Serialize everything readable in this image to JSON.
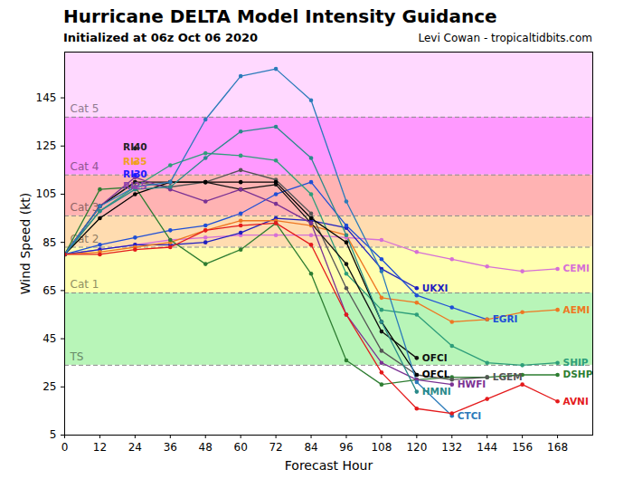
{
  "chart_data": {
    "type": "line",
    "title": "Hurricane DELTA Model Intensity Guidance",
    "subtitle": "Initialized at 06z Oct 06 2020",
    "source": "Levi Cowan - tropicaltidbits.com",
    "x_label": "Forecast Hour",
    "y_label": "Wind Speed (kt)",
    "x": [
      0,
      12,
      24,
      36,
      48,
      60,
      72,
      84,
      96,
      108,
      120,
      132,
      144,
      156,
      168
    ],
    "xlim": [
      0,
      180
    ],
    "xticks": [
      0,
      12,
      24,
      36,
      48,
      60,
      72,
      84,
      96,
      108,
      120,
      132,
      144,
      156,
      168
    ],
    "ylim": [
      5,
      164
    ],
    "yticks": [
      5,
      25,
      45,
      65,
      85,
      105,
      125,
      145
    ],
    "grid": false,
    "marker": "circle",
    "bands": [
      {
        "name": "TS",
        "low": 34,
        "high": 64,
        "color": "#b8f5b8"
      },
      {
        "name": "Cat 1",
        "low": 64,
        "high": 83,
        "color": "#ffffb0"
      },
      {
        "name": "Cat 2",
        "low": 83,
        "high": 96,
        "color": "#ffdcb0"
      },
      {
        "name": "Cat 3",
        "low": 96,
        "high": 113,
        "color": "#ffb3b3"
      },
      {
        "name": "Cat 4",
        "low": 113,
        "high": 137,
        "color": "#ff99ff"
      },
      {
        "name": "Cat 5",
        "low": 137,
        "high": 164,
        "color": "#ffd9ff"
      }
    ],
    "series": [
      {
        "name": "CEMI",
        "color": "#d66fd6",
        "values": [
          80,
          82,
          84,
          86,
          87,
          88,
          88,
          88,
          87,
          86,
          81,
          78,
          75,
          73,
          74
        ]
      },
      {
        "name": "UKXI",
        "color": "#1f1fbf",
        "values": [
          80,
          82,
          84,
          84,
          85,
          89,
          95,
          94,
          91,
          74,
          66,
          null,
          null,
          null,
          null
        ]
      },
      {
        "name": "EGRI",
        "color": "#1f4fd6",
        "values": [
          80,
          84,
          87,
          90,
          92,
          97,
          105,
          110,
          92,
          78,
          63,
          58,
          53,
          null,
          null
        ]
      },
      {
        "name": "AEMI",
        "color": "#ee7722",
        "values": [
          80,
          81,
          83,
          85,
          90,
          94,
          94,
          92,
          88,
          62,
          60,
          52,
          53,
          56,
          57
        ]
      },
      {
        "name": "SHIP",
        "color": "#2e9e7a",
        "values": [
          80,
          98,
          108,
          117,
          122,
          121,
          119,
          105,
          72,
          57,
          55,
          42,
          35,
          34,
          35
        ]
      },
      {
        "name": "DSHP",
        "color": "#2e7d32",
        "values": [
          80,
          107,
          108,
          86,
          76,
          82,
          93,
          72,
          36,
          26,
          28,
          29,
          29,
          30,
          30
        ]
      },
      {
        "name": "LGEM",
        "color": "#555555",
        "values": [
          80,
          100,
          110,
          108,
          110,
          115,
          111,
          97,
          66,
          40,
          30,
          28,
          29,
          null,
          null
        ]
      },
      {
        "name": "OFCI",
        "color": "#111111",
        "values": [
          80,
          100,
          110,
          110,
          110,
          107,
          109,
          93,
          76,
          48,
          37,
          null,
          null,
          null,
          null
        ]
      },
      {
        "name": "OFCL",
        "color": "#000000",
        "values": [
          80,
          95,
          105,
          110,
          110,
          110,
          110,
          95,
          85,
          52,
          30,
          null,
          null,
          null,
          null
        ]
      },
      {
        "name": "HWFI",
        "color": "#7b3294",
        "values": [
          80,
          100,
          112,
          107,
          102,
          107,
          101,
          93,
          55,
          35,
          28,
          26,
          null,
          null,
          null
        ]
      },
      {
        "name": "HMNI",
        "color": "#2a8a8a",
        "values": [
          80,
          98,
          107,
          108,
          120,
          131,
          133,
          120,
          88,
          52,
          23,
          null,
          null,
          null,
          null
        ]
      },
      {
        "name": "CTCI",
        "color": "#2b7bba",
        "values": [
          80,
          100,
          108,
          110,
          136,
          154,
          157,
          144,
          102,
          73,
          27,
          13,
          null,
          null,
          null
        ]
      },
      {
        "name": "AVNI",
        "color": "#e41a1c",
        "values": [
          80,
          80,
          82,
          83,
          90,
          92,
          93,
          84,
          55,
          31,
          16,
          14,
          20,
          26,
          19
        ]
      },
      {
        "name": "RI40",
        "color": "#222222",
        "values": [
          null,
          null,
          124,
          null,
          null,
          null,
          null,
          null,
          null,
          null,
          null,
          null,
          null,
          null,
          null
        ]
      },
      {
        "name": "RI35",
        "color": "#f0a020",
        "values": [
          null,
          null,
          118,
          null,
          null,
          null,
          null,
          null,
          null,
          null,
          null,
          null,
          null,
          null,
          null
        ]
      },
      {
        "name": "RI30",
        "color": "#1a1aff",
        "values": [
          null,
          null,
          113,
          null,
          null,
          null,
          null,
          null,
          null,
          null,
          null,
          null,
          null,
          null,
          null
        ]
      },
      {
        "name": "RI25",
        "color": "#8e44ad",
        "values": [
          null,
          null,
          108,
          null,
          null,
          null,
          null,
          null,
          null,
          null,
          null,
          null,
          null,
          null,
          null
        ]
      }
    ]
  }
}
